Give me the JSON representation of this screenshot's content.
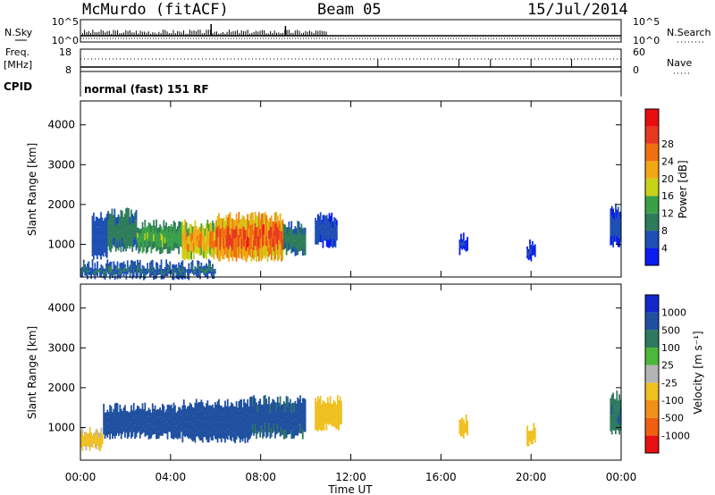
{
  "header": {
    "station": "McMurdo (fitACF)",
    "beam": "Beam 05",
    "date": "15/Jul/2014"
  },
  "top_panels": {
    "nsky_label": "N.Sky",
    "nsearch_label": "N.Search",
    "noise_top_tick": "10^5",
    "noise_bottom_tick": "10^0",
    "freq_label_1": "Freq.",
    "freq_label_2": "[MHz]",
    "freq_top_tick": "18",
    "freq_bottom_tick": "8",
    "nave_label": "Nave",
    "nave_top_tick": "60",
    "nave_bottom_tick": "0",
    "cpid_label": "CPID",
    "cpid_value": "normal (fast) 151 RF"
  },
  "power_panel": {
    "ylabel": "Slant Range [km]",
    "yticks": [
      "1000",
      "2000",
      "3000",
      "4000"
    ],
    "colorbar_label": "Power [dB]",
    "colorbar_ticks": [
      "4",
      "8",
      "12",
      "16",
      "20",
      "24",
      "28"
    ],
    "colors": [
      "#0a1cf0",
      "#1e4fb4",
      "#2e7d5a",
      "#3aa048",
      "#c8d218",
      "#f0a814",
      "#f07010",
      "#e83820",
      "#e80e0e"
    ]
  },
  "velocity_panel": {
    "ylabel": "Slant Range [km]",
    "yticks": [
      "1000",
      "2000",
      "3000",
      "4000"
    ],
    "colorbar_label": "Velocity [m s⁻¹]",
    "colorbar_ticks": [
      "1000",
      "500",
      "100",
      "25",
      "-25",
      "-100",
      "-500",
      "-1000"
    ],
    "colors": [
      "#1428c8",
      "#2050a0",
      "#2e7a60",
      "#4cb83a",
      "#b4b4b4",
      "#f0c020",
      "#f09018",
      "#f06010",
      "#e81010"
    ]
  },
  "xaxis": {
    "ticks": [
      "00:00",
      "04:00",
      "08:00",
      "12:00",
      "16:00",
      "20:00",
      "00:00"
    ],
    "label": "Time UT"
  },
  "chart_data": [
    {
      "type": "heatmap",
      "quantity": "Power",
      "units": "dB",
      "xlim": [
        0,
        24
      ],
      "ylim": [
        180,
        4600
      ],
      "clim": [
        0,
        32
      ],
      "ylabel": "Slant Range [km]",
      "blobs": [
        {
          "t0": 0.5,
          "t1": 1.2,
          "r0": 700,
          "r1": 1700,
          "value": 6
        },
        {
          "t0": 1.2,
          "t1": 2.5,
          "r0": 900,
          "r1": 1800,
          "value": 10
        },
        {
          "t0": 2.5,
          "t1": 4.5,
          "r0": 850,
          "r1": 1500,
          "value": 14
        },
        {
          "t0": 4.5,
          "t1": 6.0,
          "r0": 700,
          "r1": 1500,
          "value": 22
        },
        {
          "t0": 6.0,
          "t1": 9.0,
          "r0": 650,
          "r1": 1700,
          "value": 27
        },
        {
          "t0": 9.0,
          "t1": 10.0,
          "r0": 800,
          "r1": 1500,
          "value": 10
        },
        {
          "t0": 10.4,
          "t1": 11.4,
          "r0": 1000,
          "r1": 1700,
          "value": 5
        },
        {
          "t0": 16.8,
          "t1": 17.2,
          "r0": 800,
          "r1": 1200,
          "value": 4
        },
        {
          "t0": 19.8,
          "t1": 20.2,
          "r0": 650,
          "r1": 1000,
          "value": 4
        },
        {
          "t0": 23.5,
          "t1": 24.0,
          "r0": 1000,
          "r1": 1900,
          "value": 5
        },
        {
          "t0": 0.0,
          "t1": 6.0,
          "r0": 200,
          "r1": 500,
          "value": 8
        }
      ]
    },
    {
      "type": "heatmap",
      "quantity": "Velocity",
      "units": "m s-1",
      "xlim": [
        0,
        24
      ],
      "ylim": [
        180,
        4600
      ],
      "clim": [
        -1000,
        1000
      ],
      "ylabel": "Slant Range [km]",
      "blobs": [
        {
          "t0": 0.0,
          "t1": 1.0,
          "r0": 500,
          "r1": 900,
          "value": -150
        },
        {
          "t0": 1.0,
          "t1": 4.5,
          "r0": 800,
          "r1": 1500,
          "value": 200
        },
        {
          "t0": 4.5,
          "t1": 7.5,
          "r0": 700,
          "r1": 1600,
          "value": 400
        },
        {
          "t0": 7.5,
          "t1": 10.0,
          "r0": 800,
          "r1": 1700,
          "value": 150
        },
        {
          "t0": 10.4,
          "t1": 11.6,
          "r0": 1000,
          "r1": 1700,
          "value": -200
        },
        {
          "t0": 16.8,
          "t1": 17.2,
          "r0": 800,
          "r1": 1200,
          "value": -200
        },
        {
          "t0": 19.8,
          "t1": 20.2,
          "r0": 600,
          "r1": 1000,
          "value": -200
        },
        {
          "t0": 23.5,
          "t1": 24.0,
          "r0": 900,
          "r1": 1800,
          "value": 100
        }
      ]
    }
  ]
}
